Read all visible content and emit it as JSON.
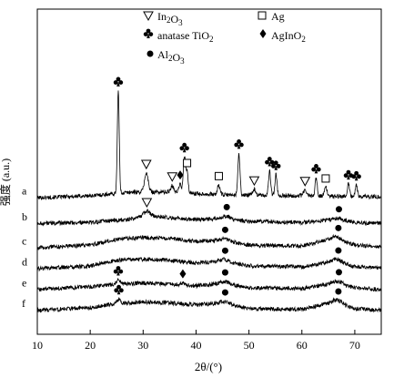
{
  "chart_data": {
    "type": "line",
    "title": "",
    "xlabel": "2θ/(°)",
    "ylabel": "强度 (a.u.)",
    "xlim": [
      10,
      75
    ],
    "xticks": [
      10,
      20,
      30,
      40,
      50,
      60,
      70
    ],
    "grid": false,
    "legend": {
      "placement": "top",
      "entries": [
        {
          "symbol": "triangle-down",
          "label": "In2O3",
          "prefix": "In",
          "sub": "2",
          "suffix": "O",
          "sub2": "3"
        },
        {
          "symbol": "club",
          "label": "anatase TiO2",
          "prefix": "anatase TiO",
          "sub": "2",
          "suffix": "",
          "sub2": ""
        },
        {
          "symbol": "circle",
          "label": "Al2O3",
          "prefix": "Al",
          "sub": "2",
          "suffix": "O",
          "sub2": "3"
        },
        {
          "symbol": "square",
          "label": "Ag",
          "prefix": "Ag",
          "sub": "",
          "suffix": "",
          "sub2": ""
        },
        {
          "symbol": "diamond",
          "label": "AgInO2",
          "prefix": "AgInO",
          "sub": "2",
          "suffix": "",
          "sub2": ""
        }
      ]
    },
    "series": [
      {
        "name": "a",
        "baseline_offset": 6.0,
        "background": [
          [
            10,
            0.15
          ],
          [
            20,
            0.25
          ],
          [
            28,
            0.45
          ],
          [
            35,
            0.45
          ],
          [
            45,
            0.3
          ],
          [
            60,
            0.25
          ],
          [
            75,
            0.2
          ]
        ],
        "peaks": [
          {
            "x": 25.3,
            "h": 5.4,
            "w": 0.18,
            "marker": "club"
          },
          {
            "x": 30.6,
            "h": 1.0,
            "w": 0.35,
            "marker": "triangle-down"
          },
          {
            "x": 35.5,
            "h": 0.35,
            "w": 0.3,
            "marker": "triangle-down"
          },
          {
            "x": 37.0,
            "h": 0.45,
            "w": 0.25,
            "marker": "diamond"
          },
          {
            "x": 37.8,
            "h": 1.9,
            "w": 0.2,
            "marker": "club"
          },
          {
            "x": 38.3,
            "h": 1.1,
            "w": 0.2,
            "marker": "square"
          },
          {
            "x": 44.3,
            "h": 0.5,
            "w": 0.25,
            "marker": "square"
          },
          {
            "x": 48.1,
            "h": 2.2,
            "w": 0.2,
            "marker": "club"
          },
          {
            "x": 51.0,
            "h": 0.3,
            "w": 0.3,
            "marker": "triangle-down"
          },
          {
            "x": 53.9,
            "h": 1.3,
            "w": 0.2,
            "marker": "club"
          },
          {
            "x": 55.1,
            "h": 1.1,
            "w": 0.2,
            "marker": "club"
          },
          {
            "x": 60.6,
            "h": 0.3,
            "w": 0.3,
            "marker": "triangle-down"
          },
          {
            "x": 62.7,
            "h": 0.95,
            "w": 0.2,
            "marker": "club"
          },
          {
            "x": 64.5,
            "h": 0.45,
            "w": 0.25,
            "marker": "square"
          },
          {
            "x": 68.8,
            "h": 0.65,
            "w": 0.2,
            "marker": "club"
          },
          {
            "x": 70.3,
            "h": 0.6,
            "w": 0.2,
            "marker": "club"
          }
        ]
      },
      {
        "name": "b",
        "baseline_offset": 4.8,
        "background": [
          [
            10,
            0.0
          ],
          [
            20,
            0.05
          ],
          [
            27,
            0.2
          ],
          [
            31,
            0.4
          ],
          [
            35,
            0.3
          ],
          [
            40,
            0.2
          ],
          [
            45,
            0.25
          ],
          [
            50,
            0.1
          ],
          [
            60,
            0.05
          ],
          [
            66,
            0.2
          ],
          [
            70,
            0.05
          ],
          [
            75,
            0.0
          ]
        ],
        "peaks": [
          {
            "x": 30.7,
            "h": 0.25,
            "w": 0.6,
            "marker": "triangle-down"
          },
          {
            "x": 45.8,
            "h": 0.15,
            "w": 0.8,
            "marker": "circle"
          },
          {
            "x": 67.0,
            "h": 0.1,
            "w": 0.8,
            "marker": "circle"
          }
        ]
      },
      {
        "name": "c",
        "baseline_offset": 3.5,
        "background": [
          [
            10,
            0.0
          ],
          [
            20,
            0.15
          ],
          [
            25,
            0.45
          ],
          [
            30,
            0.55
          ],
          [
            35,
            0.5
          ],
          [
            40,
            0.35
          ],
          [
            45,
            0.4
          ],
          [
            50,
            0.15
          ],
          [
            60,
            0.1
          ],
          [
            66,
            0.5
          ],
          [
            70,
            0.15
          ],
          [
            75,
            0.05
          ]
        ],
        "peaks": [
          {
            "x": 45.5,
            "h": 0.1,
            "w": 0.9,
            "marker": "circle"
          },
          {
            "x": 66.9,
            "h": 0.15,
            "w": 0.8,
            "marker": "circle"
          }
        ]
      },
      {
        "name": "d",
        "baseline_offset": 2.4,
        "background": [
          [
            10,
            0.0
          ],
          [
            20,
            0.15
          ],
          [
            25,
            0.45
          ],
          [
            30,
            0.5
          ],
          [
            35,
            0.45
          ],
          [
            40,
            0.3
          ],
          [
            45,
            0.4
          ],
          [
            50,
            0.15
          ],
          [
            60,
            0.1
          ],
          [
            66,
            0.4
          ],
          [
            70,
            0.1
          ],
          [
            75,
            0.05
          ]
        ],
        "peaks": [
          {
            "x": 45.5,
            "h": 0.1,
            "w": 0.9,
            "marker": "circle"
          },
          {
            "x": 66.9,
            "h": 0.15,
            "w": 0.8,
            "marker": "circle"
          }
        ]
      },
      {
        "name": "e",
        "baseline_offset": 1.3,
        "background": [
          [
            10,
            0.0
          ],
          [
            20,
            0.15
          ],
          [
            25,
            0.3
          ],
          [
            30,
            0.35
          ],
          [
            35,
            0.3
          ],
          [
            40,
            0.2
          ],
          [
            45,
            0.35
          ],
          [
            50,
            0.1
          ],
          [
            60,
            0.05
          ],
          [
            66,
            0.35
          ],
          [
            70,
            0.1
          ],
          [
            75,
            0.0
          ]
        ],
        "peaks": [
          {
            "x": 25.3,
            "h": 0.2,
            "w": 0.35,
            "marker": "club"
          },
          {
            "x": 37.5,
            "h": 0.1,
            "w": 0.4,
            "marker": "diamond"
          },
          {
            "x": 45.5,
            "h": 0.1,
            "w": 0.8,
            "marker": "circle"
          },
          {
            "x": 67.0,
            "h": 0.15,
            "w": 0.8,
            "marker": "circle"
          }
        ]
      },
      {
        "name": "f",
        "baseline_offset": 0.2,
        "background": [
          [
            10,
            0.0
          ],
          [
            20,
            0.15
          ],
          [
            25,
            0.35
          ],
          [
            30,
            0.45
          ],
          [
            35,
            0.4
          ],
          [
            40,
            0.3
          ],
          [
            45,
            0.4
          ],
          [
            50,
            0.1
          ],
          [
            60,
            0.05
          ],
          [
            66,
            0.45
          ],
          [
            70,
            0.1
          ],
          [
            75,
            0.0
          ]
        ],
        "peaks": [
          {
            "x": 25.4,
            "h": 0.25,
            "w": 0.35,
            "marker": "club"
          },
          {
            "x": 45.5,
            "h": 0.1,
            "w": 0.8,
            "marker": "circle"
          },
          {
            "x": 66.9,
            "h": 0.15,
            "w": 0.8,
            "marker": "circle"
          }
        ]
      }
    ]
  }
}
